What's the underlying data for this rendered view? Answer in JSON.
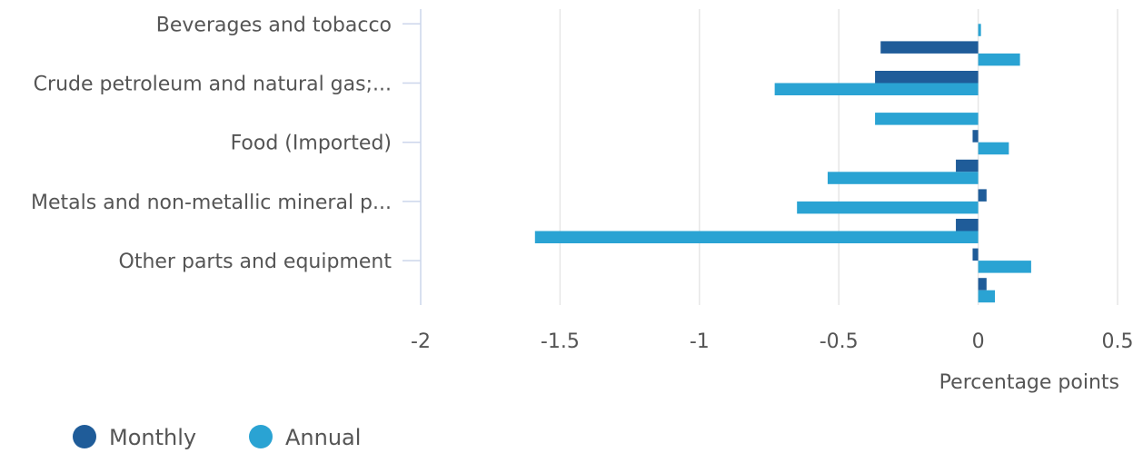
{
  "chart_data": {
    "type": "bar",
    "orientation": "horizontal",
    "categories": [
      "Beverages and tobacco",
      "",
      "Crude petroleum and natural gas;...",
      "",
      "Food (Imported)",
      "",
      "Metals and non-metallic mineral p...",
      "",
      "Other parts and equipment",
      ""
    ],
    "series": [
      {
        "name": "Monthly",
        "color": "#1f5c99",
        "values": [
          null,
          -0.35,
          -0.37,
          null,
          -0.02,
          -0.08,
          0.03,
          -0.08,
          -0.02,
          0.03
        ]
      },
      {
        "name": "Annual",
        "color": "#2aa3d3",
        "values": [
          0.01,
          0.15,
          -0.73,
          -0.37,
          0.11,
          -0.54,
          -0.65,
          -1.59,
          0.19,
          0.06
        ]
      }
    ],
    "xlim": [
      -2,
      0.5
    ],
    "xticks": [
      -2,
      -1.5,
      -1,
      -0.5,
      0,
      0.5
    ],
    "xtick_labels": [
      "-2",
      "-1.5",
      "-1",
      "-0.5",
      "0",
      "0.5"
    ],
    "xlabel": "Percentage points",
    "grid": "vertical",
    "legend": {
      "position": "bottom-left",
      "entries": [
        "Monthly",
        "Annual"
      ]
    }
  }
}
